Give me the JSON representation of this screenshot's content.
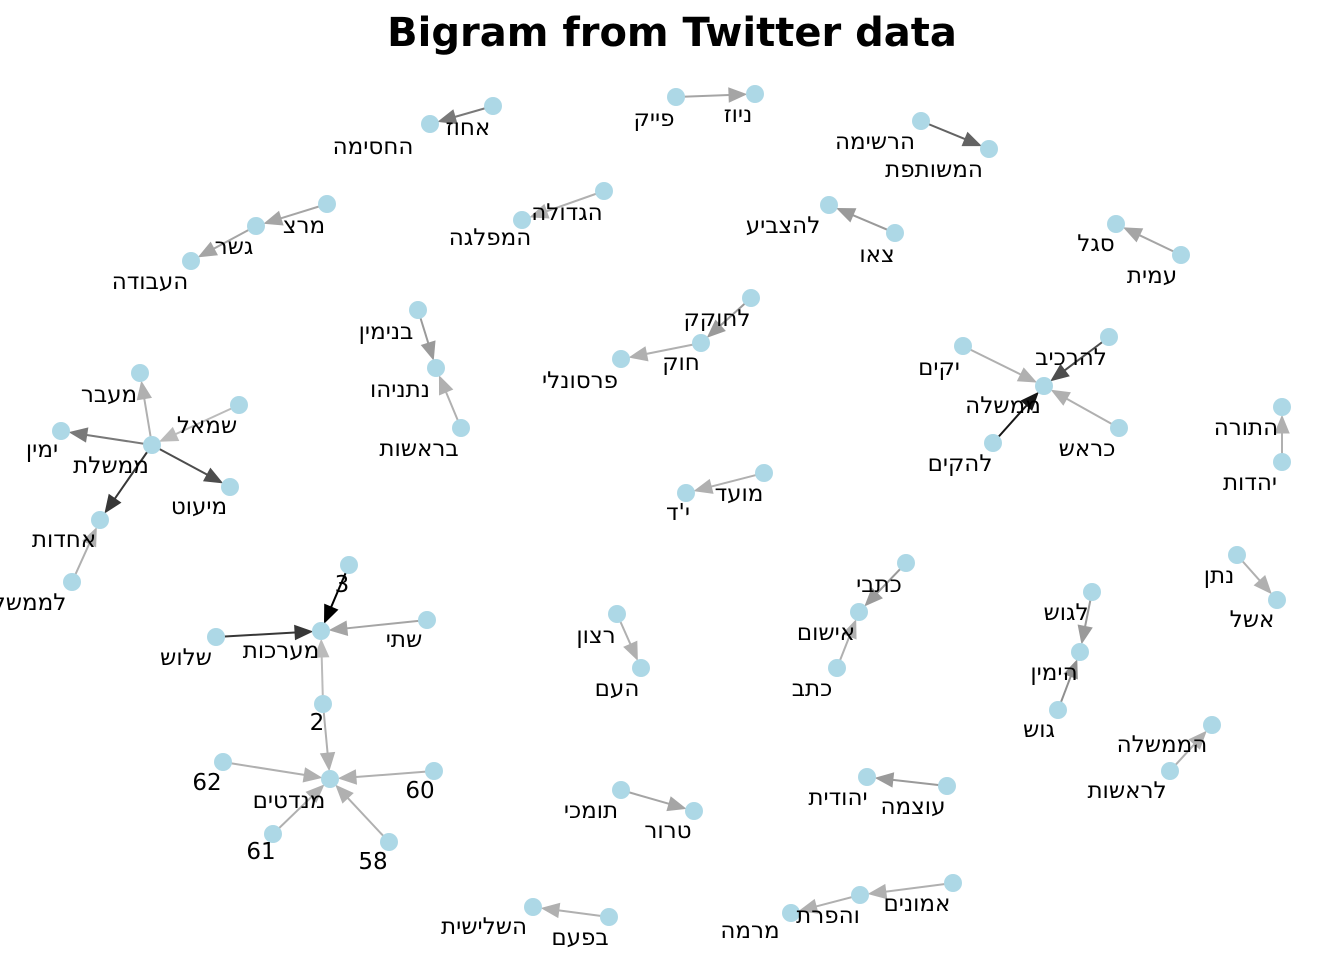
{
  "title": "Bigram from Twitter data",
  "colors": {
    "node": "#add8e6"
  },
  "nodes": [
    {
      "id": "n1",
      "label": "אחוז"
    },
    {
      "id": "n2",
      "label": "החסימה"
    },
    {
      "id": "n3",
      "label": "פייק"
    },
    {
      "id": "n4",
      "label": "ניוז"
    },
    {
      "id": "n5",
      "label": "הרשימה"
    },
    {
      "id": "n6",
      "label": "המשותפת"
    },
    {
      "id": "n7",
      "label": "מרצ"
    },
    {
      "id": "n8",
      "label": "גשר"
    },
    {
      "id": "n9",
      "label": "העבודה"
    },
    {
      "id": "n10",
      "label": "הגדולה"
    },
    {
      "id": "n11",
      "label": "המפלגה"
    },
    {
      "id": "n12",
      "label": "להצביע"
    },
    {
      "id": "n13",
      "label": "צאו"
    },
    {
      "id": "n14",
      "label": "סגל"
    },
    {
      "id": "n15",
      "label": "עמית"
    },
    {
      "id": "n16",
      "label": "בנימין"
    },
    {
      "id": "n17",
      "label": "נתניהו"
    },
    {
      "id": "n18",
      "label": "בראשות"
    },
    {
      "id": "n19",
      "label": "לחוקק"
    },
    {
      "id": "n20",
      "label": "חוק"
    },
    {
      "id": "n21",
      "label": "פרסונלי"
    },
    {
      "id": "n22",
      "label": "יקים"
    },
    {
      "id": "n23",
      "label": "להרכיב"
    },
    {
      "id": "n24",
      "label": "ממשלה"
    },
    {
      "id": "n25",
      "label": "כראש"
    },
    {
      "id": "n26",
      "label": "להקים"
    },
    {
      "id": "n27",
      "label": "התורה"
    },
    {
      "id": "n28",
      "label": "יהדות"
    },
    {
      "id": "n29",
      "label": "מעבר"
    },
    {
      "id": "n30",
      "label": "שמאל"
    },
    {
      "id": "n31",
      "label": "ימין"
    },
    {
      "id": "n32",
      "label": "ממשלת"
    },
    {
      "id": "n33",
      "label": "מיעוט"
    },
    {
      "id": "n34",
      "label": "אחדות"
    },
    {
      "id": "n35",
      "label": "לממשלה"
    },
    {
      "id": "n36",
      "label": "מועד"
    },
    {
      "id": "n37",
      "label": "י'ד"
    },
    {
      "id": "n38",
      "label": "3"
    },
    {
      "id": "n39",
      "label": "שתי"
    },
    {
      "id": "n40",
      "label": "מערכות"
    },
    {
      "id": "n41",
      "label": "שלוש"
    },
    {
      "id": "n42",
      "label": "2"
    },
    {
      "id": "n43",
      "label": "62"
    },
    {
      "id": "n44",
      "label": "60"
    },
    {
      "id": "n45",
      "label": "מנדטים"
    },
    {
      "id": "n46",
      "label": "61"
    },
    {
      "id": "n47",
      "label": "58"
    },
    {
      "id": "n48",
      "label": "רצון"
    },
    {
      "id": "n49",
      "label": "העם"
    },
    {
      "id": "n50",
      "label": "כתבי"
    },
    {
      "id": "n51",
      "label": "אישום"
    },
    {
      "id": "n52",
      "label": "כתב"
    },
    {
      "id": "n53",
      "label": "לגוש"
    },
    {
      "id": "n54",
      "label": "הימין"
    },
    {
      "id": "n55",
      "label": "גוש"
    },
    {
      "id": "n56",
      "label": "נתן"
    },
    {
      "id": "n57",
      "label": "אשל"
    },
    {
      "id": "n58",
      "label": "הממשלה"
    },
    {
      "id": "n59",
      "label": "לראשות"
    },
    {
      "id": "n60",
      "label": "תומכי"
    },
    {
      "id": "n61",
      "label": "טרור"
    },
    {
      "id": "n62",
      "label": "יהודית"
    },
    {
      "id": "n63",
      "label": "עוצמה"
    },
    {
      "id": "n64",
      "label": "אמונים"
    },
    {
      "id": "n65",
      "label": "והפרת"
    },
    {
      "id": "n66",
      "label": "מרמה"
    },
    {
      "id": "n67",
      "label": "השלישית"
    },
    {
      "id": "n68",
      "label": "בפעם"
    }
  ],
  "edges": [
    {
      "source": "n1",
      "target": "n2",
      "strength": 0.45
    },
    {
      "source": "n3",
      "target": "n4",
      "strength": 0.25
    },
    {
      "source": "n5",
      "target": "n6",
      "strength": 0.55
    },
    {
      "source": "n7",
      "target": "n8",
      "strength": 0.25
    },
    {
      "source": "n8",
      "target": "n9",
      "strength": 0.25
    },
    {
      "source": "n10",
      "target": "n11",
      "strength": 0.2
    },
    {
      "source": "n13",
      "target": "n12",
      "strength": 0.3
    },
    {
      "source": "n15",
      "target": "n14",
      "strength": 0.25
    },
    {
      "source": "n16",
      "target": "n17",
      "strength": 0.3
    },
    {
      "source": "n18",
      "target": "n17",
      "strength": 0.2
    },
    {
      "source": "n19",
      "target": "n20",
      "strength": 0.3
    },
    {
      "source": "n20",
      "target": "n21",
      "strength": 0.2
    },
    {
      "source": "n22",
      "target": "n24",
      "strength": 0.2
    },
    {
      "source": "n23",
      "target": "n24",
      "strength": 0.65
    },
    {
      "source": "n25",
      "target": "n24",
      "strength": 0.2
    },
    {
      "source": "n26",
      "target": "n24",
      "strength": 0.9
    },
    {
      "source": "n28",
      "target": "n27",
      "strength": 0.2
    },
    {
      "source": "n32",
      "target": "n29",
      "strength": 0.2
    },
    {
      "source": "n30",
      "target": "n32",
      "strength": 0.15
    },
    {
      "source": "n32",
      "target": "n31",
      "strength": 0.45
    },
    {
      "source": "n32",
      "target": "n33",
      "strength": 0.65
    },
    {
      "source": "n32",
      "target": "n34",
      "strength": 0.75
    },
    {
      "source": "n35",
      "target": "n34",
      "strength": 0.2
    },
    {
      "source": "n36",
      "target": "n37",
      "strength": 0.2
    },
    {
      "source": "n38",
      "target": "n40",
      "strength": 1.0
    },
    {
      "source": "n39",
      "target": "n40",
      "strength": 0.25
    },
    {
      "source": "n41",
      "target": "n40",
      "strength": 0.75
    },
    {
      "source": "n42",
      "target": "n40",
      "strength": 0.15
    },
    {
      "source": "n42",
      "target": "n45",
      "strength": 0.2
    },
    {
      "source": "n43",
      "target": "n45",
      "strength": 0.2
    },
    {
      "source": "n44",
      "target": "n45",
      "strength": 0.2
    },
    {
      "source": "n46",
      "target": "n45",
      "strength": 0.2
    },
    {
      "source": "n47",
      "target": "n45",
      "strength": 0.2
    },
    {
      "source": "n48",
      "target": "n49",
      "strength": 0.2
    },
    {
      "source": "n50",
      "target": "n51",
      "strength": 0.3
    },
    {
      "source": "n52",
      "target": "n51",
      "strength": 0.2
    },
    {
      "source": "n53",
      "target": "n54",
      "strength": 0.3
    },
    {
      "source": "n55",
      "target": "n54",
      "strength": 0.35
    },
    {
      "source": "n56",
      "target": "n57",
      "strength": 0.2
    },
    {
      "source": "n59",
      "target": "n58",
      "strength": 0.2
    },
    {
      "source": "n60",
      "target": "n61",
      "strength": 0.25
    },
    {
      "source": "n63",
      "target": "n62",
      "strength": 0.3
    },
    {
      "source": "n64",
      "target": "n65",
      "strength": 0.2
    },
    {
      "source": "n65",
      "target": "n66",
      "strength": 0.2
    },
    {
      "source": "n68",
      "target": "n67",
      "strength": 0.2
    }
  ]
}
